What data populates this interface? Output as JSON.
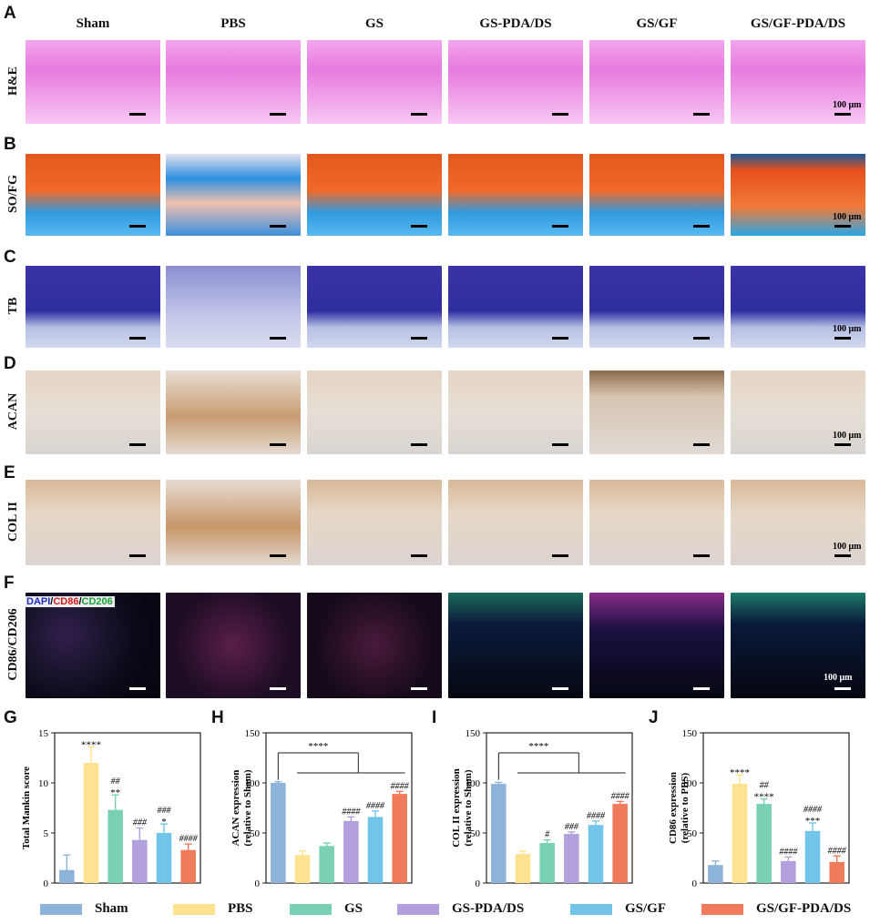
{
  "groups": [
    "Sham",
    "PBS",
    "GS",
    "GS-PDA/DS",
    "GS/GF",
    "GS/GF-PDA/DS"
  ],
  "group_colors": [
    "#8db3d9",
    "#fde28f",
    "#79d0b5",
    "#b2a0dc",
    "#73c4e9",
    "#ef7a5c"
  ],
  "panel_letters": [
    "A",
    "B",
    "C",
    "D",
    "E",
    "F",
    "G",
    "H",
    "I",
    "J"
  ],
  "row_labels": [
    "H&E",
    "SO/FG",
    "TB",
    "ACAN",
    "COL II",
    "CD86/CD206"
  ],
  "fluorescence_legend": {
    "dapi": "DAPI",
    "sep1": "/",
    "cd86": "CD86",
    "sep2": "/",
    "cd206": "CD206"
  },
  "scale_text": "100 μm",
  "chart_data": [
    {
      "type": "bar",
      "panel": "G",
      "categories": [
        "Sham",
        "PBS",
        "GS",
        "GS-PDA/DS",
        "GS/GF",
        "GS/GF-PDA/DS"
      ],
      "values": [
        1.3,
        12.0,
        7.3,
        4.3,
        5.0,
        3.3
      ],
      "errors": [
        1.5,
        1.6,
        1.5,
        1.2,
        0.9,
        0.6
      ],
      "ylabel": "Total Mankin score",
      "ylim": [
        0,
        15
      ],
      "yticks": [
        "0",
        "5",
        "10",
        "15"
      ],
      "annotations_above": [
        "",
        "****",
        "**",
        "",
        "*",
        ""
      ],
      "annotations_top": [
        "",
        "",
        "##",
        "###",
        "###",
        "####"
      ]
    },
    {
      "type": "bar",
      "panel": "H",
      "categories": [
        "Sham",
        "PBS",
        "GS",
        "GS-PDA/DS",
        "GS/GF",
        "GS/GF-PDA/DS"
      ],
      "values": [
        100,
        28,
        37,
        62,
        66,
        89
      ],
      "errors": [
        1.2,
        4,
        3,
        4,
        6,
        2.5
      ],
      "ylabel": "ACAN expression",
      "ylabel2": "(relative to Sham)",
      "ylim": [
        0,
        150
      ],
      "yticks": [
        "0",
        "50",
        "100",
        "150"
      ],
      "annotations_above": [
        "",
        "",
        "",
        "",
        "",
        ""
      ],
      "annotations_top": [
        "",
        "",
        "",
        "####",
        "####",
        "####"
      ],
      "bracket_label": "****"
    },
    {
      "type": "bar",
      "panel": "I",
      "categories": [
        "Sham",
        "PBS",
        "GS",
        "GS-PDA/DS",
        "GS/GF",
        "GS/GF-PDA/DS"
      ],
      "values": [
        99,
        29,
        40,
        49,
        58,
        79
      ],
      "errors": [
        1.5,
        3,
        3,
        2,
        4,
        2.5
      ],
      "ylabel": "COL II expression",
      "ylabel2": "(relative to Sham)",
      "ylim": [
        0,
        150
      ],
      "yticks": [
        "0",
        "50",
        "100",
        "150"
      ],
      "annotations_above": [
        "",
        "",
        "",
        "",
        "",
        ""
      ],
      "annotations_top": [
        "",
        "",
        "#",
        "###",
        "####",
        "####"
      ],
      "bracket_label": "****"
    },
    {
      "type": "bar",
      "panel": "J",
      "categories": [
        "Sham",
        "PBS",
        "GS",
        "GS-PDA/DS",
        "GS/GF",
        "GS/GF-PDA/DS"
      ],
      "values": [
        18,
        99,
        79,
        22,
        52,
        21
      ],
      "errors": [
        4,
        9,
        5,
        4,
        8,
        6
      ],
      "ylabel": "CD86 expression",
      "ylabel2": "(relative to PBS)",
      "ylim": [
        0,
        150
      ],
      "yticks": [
        "0",
        "50",
        "100",
        "150"
      ],
      "annotations_above": [
        "",
        "****",
        "****",
        "",
        "***",
        ""
      ],
      "annotations_top": [
        "",
        "",
        "##",
        "####",
        "####",
        "####"
      ]
    }
  ]
}
